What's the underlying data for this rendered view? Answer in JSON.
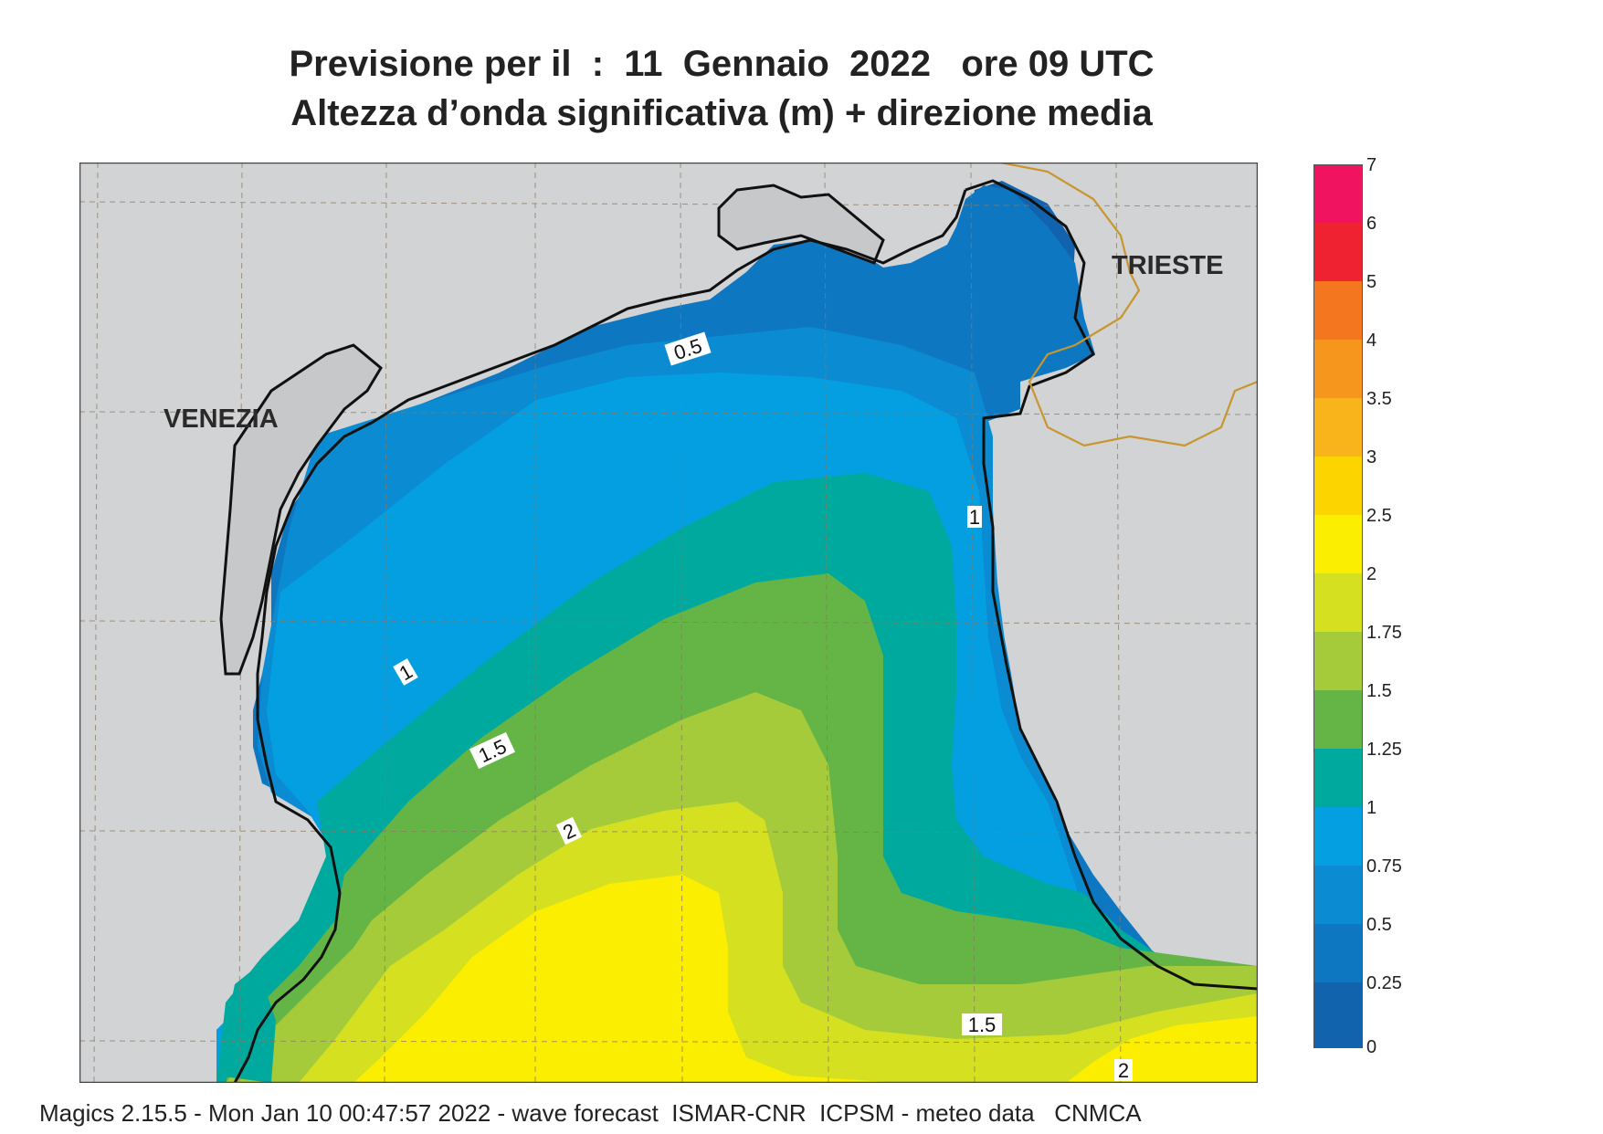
{
  "header": {
    "line1": "Previsione per il  :  11  Gennaio  2022   ore 09 UTC",
    "line2": "Altezza d’onda significativa (m) + direzione media"
  },
  "map": {
    "cities": [
      "VENEZIA",
      "TRIESTE"
    ],
    "contour_labels": [
      "0.5",
      "1",
      "1",
      "1.5",
      "1.5",
      "2",
      "2"
    ],
    "land_color": "#d2d3d5",
    "coast_color": "#111111",
    "border_color": "#c8962e"
  },
  "legend": {
    "labels": [
      "7",
      "6",
      "5",
      "4",
      "3.5",
      "3",
      "2.5",
      "2",
      "1.75",
      "1.5",
      "1.25",
      "1",
      "0.75",
      "0.5",
      "0.25",
      "0"
    ],
    "colors": [
      "#f0135f",
      "#ee2230",
      "#f4761e",
      "#f7961d",
      "#f9b41c",
      "#fcd400",
      "#fbee00",
      "#d5e021",
      "#a6cb3a",
      "#64b546",
      "#00a99d",
      "#039fe1",
      "#0a8bd2",
      "#0e77c1",
      "#1163ad"
    ]
  },
  "footer": {
    "text": "Magics 2.15.5 - Mon Jan 10 00:47:57 2022 - wave forecast  ISMAR-CNR  ICPSM - meteo data   CNMCA"
  }
}
